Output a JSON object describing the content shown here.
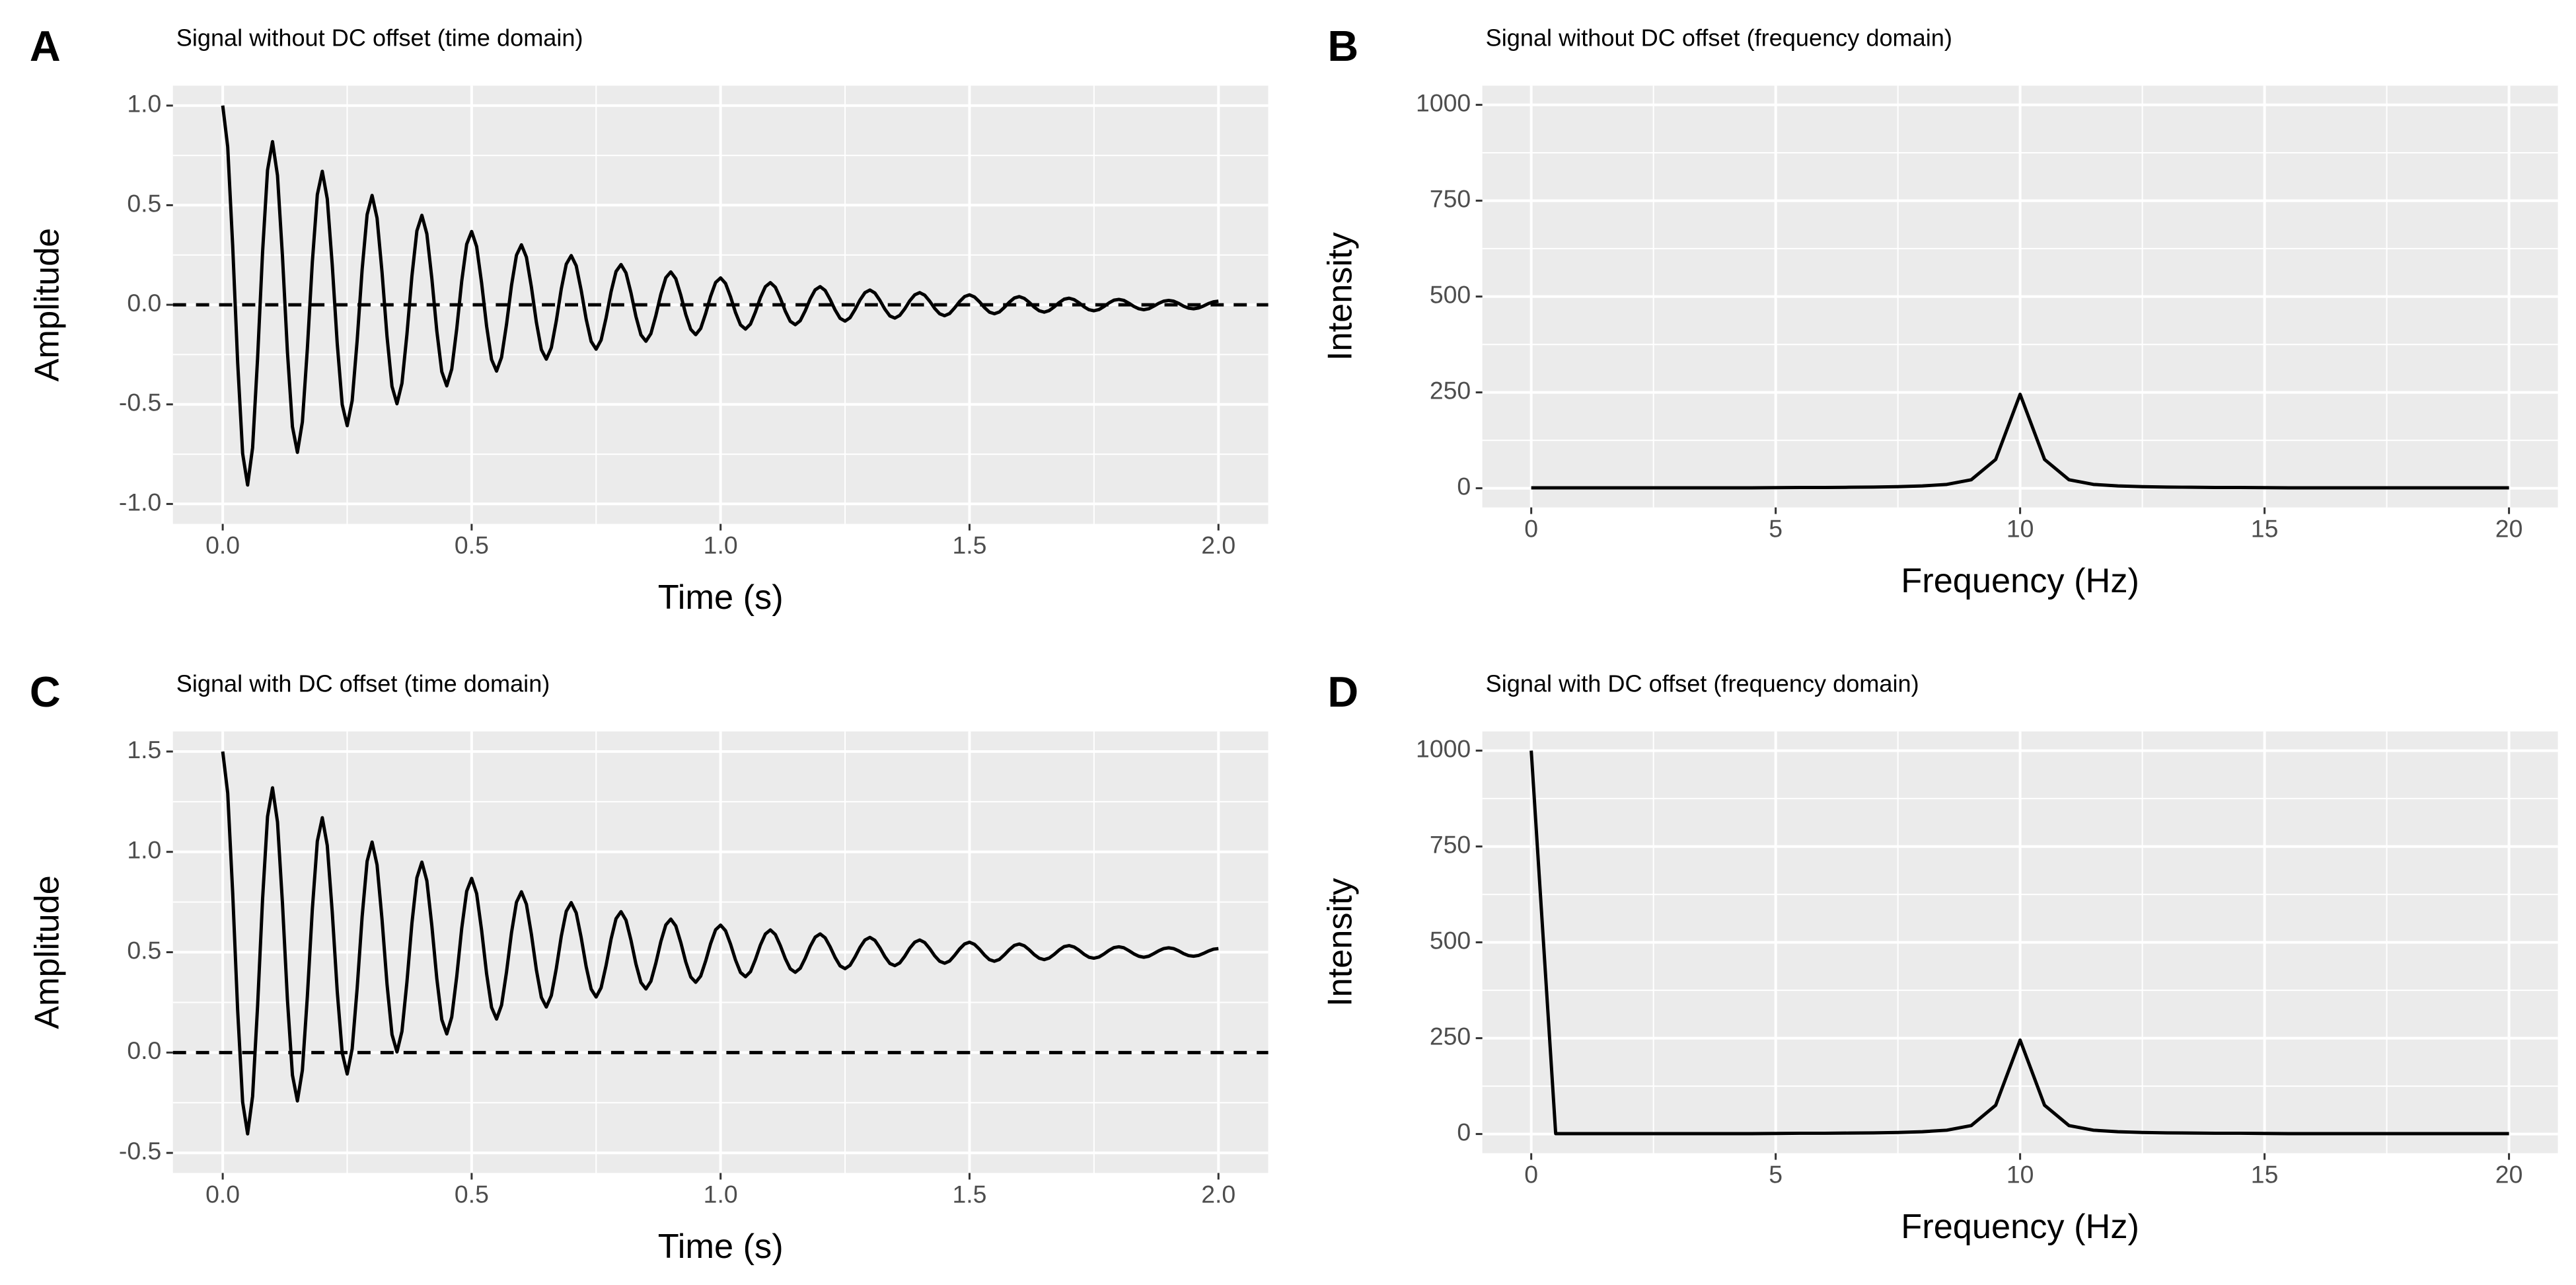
{
  "chart_data": [
    {
      "type": "line",
      "panel_label": "A",
      "title": "Signal without DC offset (time domain)",
      "xlabel": "Time (s)",
      "ylabel": "Amplitude",
      "color": "#000000",
      "grid": true,
      "hline": 0,
      "xlim": [
        -0.1,
        2.1
      ],
      "ylim": [
        -1.1,
        1.1
      ],
      "xticks": [
        {
          "value": 0,
          "label": "0.0"
        },
        {
          "value": 0.5,
          "label": "0.5"
        },
        {
          "value": 1,
          "label": "1.0"
        },
        {
          "value": 1.5,
          "label": "1.5"
        },
        {
          "value": 2,
          "label": "2.0"
        }
      ],
      "yticks": [
        {
          "value": -1,
          "label": "-1.0"
        },
        {
          "value": -0.5,
          "label": "-0.5"
        },
        {
          "value": 0,
          "label": "0.0"
        },
        {
          "value": 0.5,
          "label": "0.5"
        },
        {
          "value": 1,
          "label": "1.0"
        }
      ],
      "x": [
        0,
        0.01,
        0.02,
        0.03,
        0.04,
        0.05,
        0.06,
        0.07,
        0.08,
        0.09,
        0.1,
        0.11,
        0.12,
        0.13,
        0.14,
        0.15,
        0.16,
        0.17,
        0.18,
        0.19,
        0.2,
        0.21,
        0.22,
        0.23,
        0.24,
        0.25,
        0.26,
        0.27,
        0.28,
        0.29,
        0.3,
        0.31,
        0.32,
        0.33,
        0.34,
        0.35,
        0.36,
        0.37,
        0.38,
        0.39,
        0.4,
        0.41,
        0.42,
        0.43,
        0.44,
        0.45,
        0.46,
        0.47,
        0.48,
        0.49,
        0.5,
        0.51,
        0.52,
        0.53,
        0.54,
        0.55,
        0.56,
        0.57,
        0.58,
        0.59,
        0.6,
        0.61,
        0.62,
        0.63,
        0.64,
        0.65,
        0.66,
        0.67,
        0.68,
        0.69,
        0.7,
        0.71,
        0.72,
        0.73,
        0.74,
        0.75,
        0.76,
        0.77,
        0.78,
        0.79,
        0.8,
        0.81,
        0.82,
        0.83,
        0.84,
        0.85,
        0.86,
        0.87,
        0.88,
        0.89,
        0.9,
        0.91,
        0.92,
        0.93,
        0.94,
        0.95,
        0.96,
        0.97,
        0.98,
        0.99,
        1,
        1.01,
        1.02,
        1.03,
        1.04,
        1.05,
        1.06,
        1.07,
        1.08,
        1.09,
        1.1,
        1.11,
        1.12,
        1.13,
        1.14,
        1.15,
        1.16,
        1.17,
        1.18,
        1.19,
        1.2,
        1.21,
        1.22,
        1.23,
        1.24,
        1.25,
        1.26,
        1.27,
        1.28,
        1.29,
        1.3,
        1.31,
        1.32,
        1.33,
        1.34,
        1.35,
        1.36,
        1.37,
        1.38,
        1.39,
        1.4,
        1.41,
        1.42,
        1.43,
        1.44,
        1.45,
        1.46,
        1.47,
        1.48,
        1.49,
        1.5,
        1.51,
        1.52,
        1.53,
        1.54,
        1.55,
        1.56,
        1.57,
        1.58,
        1.59,
        1.6,
        1.61,
        1.62,
        1.63,
        1.64,
        1.65,
        1.66,
        1.67,
        1.68,
        1.69,
        1.7,
        1.71,
        1.72,
        1.73,
        1.74,
        1.75,
        1.76,
        1.77,
        1.78,
        1.79,
        1.8,
        1.81,
        1.82,
        1.83,
        1.84,
        1.85,
        1.86,
        1.87,
        1.88,
        1.89,
        1.9,
        1.91,
        1.92,
        1.93,
        1.94,
        1.95,
        1.96,
        1.97,
        1.98,
        1.99,
        2
      ],
      "values": [
        1,
        0.793,
        0.297,
        -0.291,
        -0.747,
        -0.905,
        -0.718,
        -0.269,
        0.263,
        0.676,
        0.819,
        0.649,
        0.243,
        -0.238,
        -0.612,
        -0.741,
        -0.588,
        -0.22,
        0.215,
        0.553,
        0.67,
        0.532,
        0.199,
        -0.195,
        -0.501,
        -0.607,
        -0.481,
        -0.18,
        0.176,
        0.453,
        0.549,
        0.435,
        0.163,
        -0.16,
        -0.41,
        -0.497,
        -0.394,
        -0.148,
        0.144,
        0.371,
        0.449,
        0.356,
        0.133,
        -0.131,
        -0.336,
        -0.407,
        -0.323,
        -0.121,
        0.118,
        0.304,
        0.368,
        0.292,
        0.109,
        -0.107,
        -0.275,
        -0.333,
        -0.264,
        -0.099,
        0.097,
        0.249,
        0.301,
        0.239,
        0.089,
        -0.088,
        -0.225,
        -0.273,
        -0.216,
        -0.081,
        0.079,
        0.204,
        0.247,
        0.196,
        0.073,
        -0.072,
        -0.184,
        -0.223,
        -0.177,
        -0.066,
        0.065,
        0.167,
        0.202,
        0.16,
        0.06,
        -0.059,
        -0.151,
        -0.183,
        -0.145,
        -0.054,
        0.053,
        0.136,
        0.165,
        0.131,
        0.049,
        -0.048,
        -0.123,
        -0.15,
        -0.119,
        -0.044,
        0.043,
        0.112,
        0.135,
        0.107,
        0.04,
        -0.039,
        -0.101,
        -0.122,
        -0.097,
        -0.036,
        0.036,
        0.091,
        0.111,
        0.088,
        0.033,
        -0.032,
        -0.083,
        -0.1,
        -0.08,
        -0.03,
        0.029,
        0.075,
        0.091,
        0.072,
        0.027,
        -0.026,
        -0.068,
        -0.082,
        -0.065,
        -0.024,
        0.024,
        0.061,
        0.074,
        0.059,
        0.022,
        -0.022,
        -0.056,
        -0.067,
        -0.053,
        -0.02,
        0.02,
        0.05,
        0.061,
        0.048,
        0.018,
        -0.018,
        -0.045,
        -0.055,
        -0.044,
        -0.016,
        0.016,
        0.041,
        0.05,
        0.039,
        0.015,
        -0.014,
        -0.037,
        -0.045,
        -0.036,
        -0.013,
        0.013,
        0.034,
        0.041,
        0.032,
        0.012,
        -0.012,
        -0.03,
        -0.037,
        -0.029,
        -0.011,
        0.011,
        0.028,
        0.033,
        0.026,
        0.01,
        -0.01,
        -0.025,
        -0.03,
        -0.024,
        -0.009,
        0.009,
        0.023,
        0.027,
        0.022,
        0.008,
        -0.008,
        -0.02,
        -0.025,
        -0.02,
        -0.007,
        0.007,
        0.018,
        0.022,
        0.018,
        0.007,
        -0.007,
        -0.017,
        -0.02,
        -0.016,
        -0.006,
        0.006,
        0.015,
        0.018
      ]
    },
    {
      "type": "line",
      "panel_label": "B",
      "title": "Signal without DC offset (frequency domain)",
      "xlabel": "Frequency (Hz)",
      "ylabel": "Intensity",
      "color": "#000000",
      "grid": true,
      "xlim": [
        -1,
        21
      ],
      "ylim": [
        -50,
        1050
      ],
      "xticks": [
        0,
        5,
        10,
        15,
        20
      ],
      "yticks": [
        0,
        250,
        500,
        750,
        1000
      ],
      "x": [
        0,
        0.5,
        1,
        1.5,
        2,
        2.5,
        3,
        3.5,
        4,
        4.5,
        5,
        5.5,
        6,
        6.5,
        7,
        7.5,
        8,
        8.5,
        9,
        9.5,
        10,
        10.5,
        11,
        11.5,
        12,
        12.5,
        13,
        13.5,
        14,
        14.5,
        15,
        15.5,
        16,
        16.5,
        17,
        17.5,
        18,
        18.5,
        19,
        19.5,
        20
      ],
      "values": [
        1,
        1,
        1,
        1,
        1,
        1,
        1,
        1,
        1,
        1,
        1.5,
        2,
        2,
        2.5,
        3,
        4,
        6,
        10,
        22,
        75,
        245,
        75,
        22,
        10,
        6,
        4,
        3,
        2.5,
        2,
        2,
        1.5,
        1,
        1,
        1,
        1,
        1,
        1,
        1,
        1,
        1,
        1
      ]
    },
    {
      "type": "line",
      "panel_label": "C",
      "title": "Signal with DC offset (time domain)",
      "xlabel": "Time (s)",
      "ylabel": "Amplitude",
      "color": "#000000",
      "grid": true,
      "hline": 0,
      "xlim": [
        -0.1,
        2.1
      ],
      "ylim": [
        -0.6,
        1.6
      ],
      "xticks": [
        {
          "value": 0,
          "label": "0.0"
        },
        {
          "value": 0.5,
          "label": "0.5"
        },
        {
          "value": 1,
          "label": "1.0"
        },
        {
          "value": 1.5,
          "label": "1.5"
        },
        {
          "value": 2,
          "label": "2.0"
        }
      ],
      "yticks": [
        {
          "value": -0.5,
          "label": "-0.5"
        },
        {
          "value": 0,
          "label": "0.0"
        },
        {
          "value": 0.5,
          "label": "0.5"
        },
        {
          "value": 1,
          "label": "1.0"
        },
        {
          "value": 1.5,
          "label": "1.5"
        }
      ],
      "x": [
        0,
        0.01,
        0.02,
        0.03,
        0.04,
        0.05,
        0.06,
        0.07,
        0.08,
        0.09,
        0.1,
        0.11,
        0.12,
        0.13,
        0.14,
        0.15,
        0.16,
        0.17,
        0.18,
        0.19,
        0.2,
        0.21,
        0.22,
        0.23,
        0.24,
        0.25,
        0.26,
        0.27,
        0.28,
        0.29,
        0.3,
        0.31,
        0.32,
        0.33,
        0.34,
        0.35,
        0.36,
        0.37,
        0.38,
        0.39,
        0.4,
        0.41,
        0.42,
        0.43,
        0.44,
        0.45,
        0.46,
        0.47,
        0.48,
        0.49,
        0.5,
        0.51,
        0.52,
        0.53,
        0.54,
        0.55,
        0.56,
        0.57,
        0.58,
        0.59,
        0.6,
        0.61,
        0.62,
        0.63,
        0.64,
        0.65,
        0.66,
        0.67,
        0.68,
        0.69,
        0.7,
        0.71,
        0.72,
        0.73,
        0.74,
        0.75,
        0.76,
        0.77,
        0.78,
        0.79,
        0.8,
        0.81,
        0.82,
        0.83,
        0.84,
        0.85,
        0.86,
        0.87,
        0.88,
        0.89,
        0.9,
        0.91,
        0.92,
        0.93,
        0.94,
        0.95,
        0.96,
        0.97,
        0.98,
        0.99,
        1,
        1.01,
        1.02,
        1.03,
        1.04,
        1.05,
        1.06,
        1.07,
        1.08,
        1.09,
        1.1,
        1.11,
        1.12,
        1.13,
        1.14,
        1.15,
        1.16,
        1.17,
        1.18,
        1.19,
        1.2,
        1.21,
        1.22,
        1.23,
        1.24,
        1.25,
        1.26,
        1.27,
        1.28,
        1.29,
        1.3,
        1.31,
        1.32,
        1.33,
        1.34,
        1.35,
        1.36,
        1.37,
        1.38,
        1.39,
        1.4,
        1.41,
        1.42,
        1.43,
        1.44,
        1.45,
        1.46,
        1.47,
        1.48,
        1.49,
        1.5,
        1.51,
        1.52,
        1.53,
        1.54,
        1.55,
        1.56,
        1.57,
        1.58,
        1.59,
        1.6,
        1.61,
        1.62,
        1.63,
        1.64,
        1.65,
        1.66,
        1.67,
        1.68,
        1.69,
        1.7,
        1.71,
        1.72,
        1.73,
        1.74,
        1.75,
        1.76,
        1.77,
        1.78,
        1.79,
        1.8,
        1.81,
        1.82,
        1.83,
        1.84,
        1.85,
        1.86,
        1.87,
        1.88,
        1.89,
        1.9,
        1.91,
        1.92,
        1.93,
        1.94,
        1.95,
        1.96,
        1.97,
        1.98,
        1.99,
        2
      ],
      "values": [
        1.5,
        1.293,
        0.797,
        0.209,
        -0.247,
        -0.405,
        -0.218,
        0.231,
        0.763,
        1.176,
        1.319,
        1.149,
        0.743,
        0.262,
        -0.112,
        -0.241,
        -0.088,
        0.28,
        0.715,
        1.053,
        1.17,
        1.032,
        0.699,
        0.305,
        -0.001,
        -0.107,
        0.019,
        0.32,
        0.676,
        0.953,
        1.049,
        0.935,
        0.663,
        0.34,
        0.09,
        0.003,
        0.106,
        0.352,
        0.644,
        0.871,
        0.949,
        0.856,
        0.633,
        0.369,
        0.164,
        0.093,
        0.177,
        0.379,
        0.618,
        0.804,
        0.868,
        0.792,
        0.609,
        0.393,
        0.225,
        0.167,
        0.236,
        0.401,
        0.597,
        0.749,
        0.801,
        0.739,
        0.589,
        0.412,
        0.275,
        0.227,
        0.284,
        0.419,
        0.579,
        0.704,
        0.747,
        0.696,
        0.573,
        0.428,
        0.316,
        0.277,
        0.323,
        0.434,
        0.565,
        0.667,
        0.702,
        0.66,
        0.56,
        0.441,
        0.349,
        0.317,
        0.355,
        0.446,
        0.553,
        0.636,
        0.665,
        0.631,
        0.549,
        0.452,
        0.377,
        0.35,
        0.381,
        0.456,
        0.543,
        0.612,
        0.635,
        0.607,
        0.54,
        0.461,
        0.399,
        0.378,
        0.403,
        0.464,
        0.536,
        0.591,
        0.611,
        0.588,
        0.533,
        0.468,
        0.417,
        0.4,
        0.42,
        0.47,
        0.529,
        0.575,
        0.591,
        0.572,
        0.527,
        0.474,
        0.432,
        0.418,
        0.435,
        0.476,
        0.524,
        0.561,
        0.574,
        0.559,
        0.522,
        0.478,
        0.444,
        0.433,
        0.447,
        0.48,
        0.52,
        0.55,
        0.561,
        0.548,
        0.518,
        0.482,
        0.455,
        0.445,
        0.456,
        0.484,
        0.516,
        0.541,
        0.55,
        0.539,
        0.515,
        0.486,
        0.463,
        0.455,
        0.464,
        0.487,
        0.513,
        0.534,
        0.541,
        0.532,
        0.512,
        0.488,
        0.47,
        0.463,
        0.471,
        0.489,
        0.511,
        0.528,
        0.533,
        0.526,
        0.51,
        0.49,
        0.475,
        0.47,
        0.476,
        0.491,
        0.509,
        0.523,
        0.527,
        0.522,
        0.508,
        0.492,
        0.48,
        0.475,
        0.48,
        0.493,
        0.507,
        0.518,
        0.522,
        0.518,
        0.507,
        0.493,
        0.483,
        0.48,
        0.484,
        0.494,
        0.506,
        0.515,
        0.518
      ]
    },
    {
      "type": "line",
      "panel_label": "D",
      "title": "Signal with DC offset (frequency domain)",
      "xlabel": "Frequency (Hz)",
      "ylabel": "Intensity",
      "color": "#000000",
      "grid": true,
      "xlim": [
        -1,
        21
      ],
      "ylim": [
        -50,
        1050
      ],
      "xticks": [
        0,
        5,
        10,
        15,
        20
      ],
      "yticks": [
        0,
        250,
        500,
        750,
        1000
      ],
      "x": [
        0,
        0.5,
        1,
        1.5,
        2,
        2.5,
        3,
        3.5,
        4,
        4.5,
        5,
        5.5,
        6,
        6.5,
        7,
        7.5,
        8,
        8.5,
        9,
        9.5,
        10,
        10.5,
        11,
        11.5,
        12,
        12.5,
        13,
        13.5,
        14,
        14.5,
        15,
        15.5,
        16,
        16.5,
        17,
        17.5,
        18,
        18.5,
        19,
        19.5,
        20
      ],
      "values": [
        1000,
        1,
        1,
        1,
        1,
        1,
        1,
        1,
        1,
        1,
        1.5,
        2,
        2,
        2.5,
        3,
        4,
        6,
        10,
        22,
        75,
        245,
        75,
        22,
        10,
        6,
        4,
        3,
        2.5,
        2,
        2,
        1.5,
        1,
        1,
        1,
        1,
        1,
        1,
        1,
        1,
        1,
        1
      ]
    }
  ]
}
